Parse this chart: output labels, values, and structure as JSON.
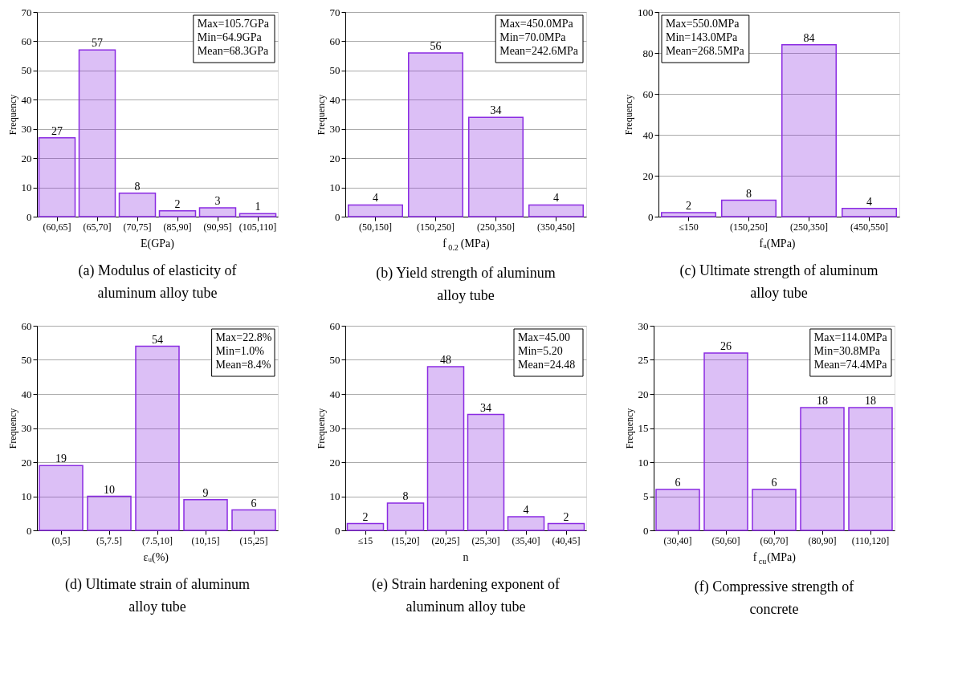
{
  "chart_data": [
    {
      "type": "bar",
      "title": "(a) Modulus of elasticity of aluminum alloy tube",
      "xlabel": "E(GPa)",
      "ylabel": "Frequency",
      "categories": [
        "(60,65]",
        "(65,70]",
        "(70,75]",
        "(85,90]",
        "(90,95]",
        "(105,110]"
      ],
      "values": [
        27,
        57,
        8,
        2,
        3,
        1
      ],
      "color": "#8a2be2",
      "ylim": [
        0,
        70
      ],
      "yticks": [
        0,
        10,
        20,
        30,
        40,
        50,
        60,
        70
      ],
      "grid": "y",
      "data_labels": true,
      "annotations": [
        "Max=105.7GPa",
        "Min=64.9GPa",
        "Mean=68.3GPa"
      ]
    },
    {
      "type": "bar",
      "title": "(b) Yield strength of aluminum alloy tube",
      "xlabel": "f$_{0.2}$(MPa)",
      "ylabel": "Frequency",
      "categories": [
        "(50,150]",
        "(150,250]",
        "(250,350]",
        "(350,450]"
      ],
      "values": [
        4,
        56,
        34,
        4
      ],
      "color": "#8a2be2",
      "ylim": [
        0,
        70
      ],
      "yticks": [
        0,
        10,
        20,
        30,
        40,
        50,
        60,
        70
      ],
      "grid": "y",
      "data_labels": true,
      "annotations": [
        "Max=450.0MPa",
        "Min=70.0MPa",
        "Mean=242.6MPa"
      ]
    },
    {
      "type": "bar",
      "title": "(c) Ultimate strength of aluminum alloy tube",
      "xlabel": "fᵤ(MPa)",
      "ylabel": "Frequency",
      "categories": [
        "≤150",
        "(150,250]",
        "(250,350]",
        "(450,550]"
      ],
      "values": [
        2,
        8,
        84,
        4
      ],
      "color": "#8a2be2",
      "ylim": [
        0,
        100
      ],
      "yticks": [
        0,
        20,
        40,
        60,
        80,
        100
      ],
      "grid": "y",
      "data_labels": true,
      "annotations": [
        "Max=550.0MPa",
        "Min=143.0MPa",
        "Mean=268.5MPa"
      ]
    },
    {
      "type": "bar",
      "title": "(d) Ultimate strain of aluminum alloy tube",
      "xlabel": "εᵤ(%)",
      "ylabel": "Frequency",
      "categories": [
        "(0,5]",
        "(5,7.5]",
        "(7.5,10]",
        "(10,15]",
        "(15,25]"
      ],
      "values": [
        19,
        10,
        54,
        9,
        6
      ],
      "color": "#8a2be2",
      "ylim": [
        0,
        60
      ],
      "yticks": [
        0,
        10,
        20,
        30,
        40,
        50,
        60
      ],
      "grid": "y",
      "data_labels": true,
      "annotations": [
        "Max=22.8%",
        "Min=1.0%",
        "Mean=8.4%"
      ]
    },
    {
      "type": "bar",
      "title": "(e) Strain hardening exponent of aluminum alloy tube",
      "xlabel": "n",
      "ylabel": "Frequency",
      "categories": [
        "≤15",
        "(15,20]",
        "(20,25]",
        "(25,30]",
        "(35,40]",
        "(40,45]"
      ],
      "values": [
        2,
        8,
        48,
        34,
        4,
        2
      ],
      "color": "#8a2be2",
      "ylim": [
        0,
        60
      ],
      "yticks": [
        0,
        10,
        20,
        30,
        40,
        50,
        60
      ],
      "grid": "y",
      "data_labels": true,
      "annotations": [
        "Max=45.00",
        "Min=5.20",
        "Mean=24.48"
      ]
    },
    {
      "type": "bar",
      "title": "(f) Compressive strength of concrete",
      "xlabel": "f$_{cu}$(MPa)",
      "ylabel": "Frequency",
      "categories": [
        "(30,40]",
        "(50,60]",
        "(60,70]",
        "(80,90]",
        "(110,120]"
      ],
      "values": [
        6,
        26,
        6,
        18,
        18
      ],
      "color": "#8a2be2",
      "ylim": [
        0,
        30
      ],
      "yticks": [
        0,
        5,
        10,
        15,
        20,
        25,
        30
      ],
      "grid": "y",
      "data_labels": true,
      "annotations": [
        "Max=114.0MPa",
        "Min=30.8MPa",
        "Mean=74.4MPa"
      ]
    }
  ]
}
